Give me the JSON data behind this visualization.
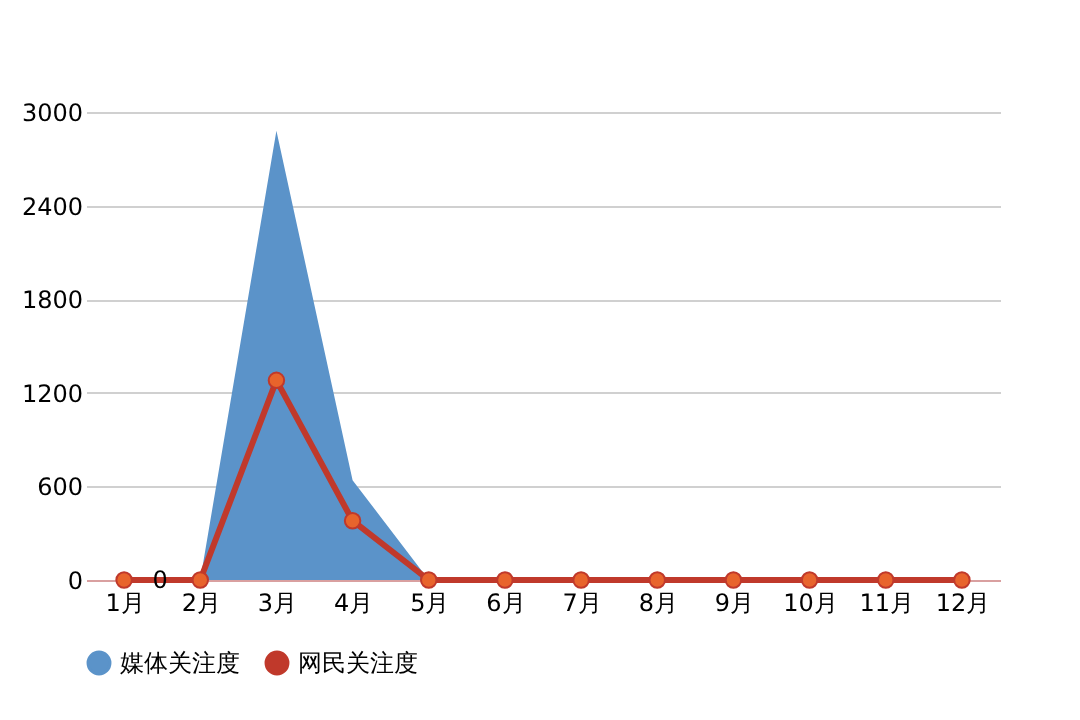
{
  "chart_data": {
    "type": "line",
    "categories": [
      "1月",
      "2月",
      "3月",
      "4月",
      "5月",
      "6月",
      "7月",
      "8月",
      "9月",
      "10月",
      "11月",
      "12月"
    ],
    "series": [
      {
        "name": "媒体关注度",
        "type": "area",
        "color": "#5b93c9",
        "values": [
          0,
          0,
          2880,
          640,
          0,
          0,
          0,
          0,
          0,
          0,
          0,
          0
        ]
      },
      {
        "name": "网民关注度",
        "color": "#c0392b",
        "marker": "circle",
        "values": [
          0,
          0,
          1280,
          380,
          0,
          0,
          0,
          0,
          0,
          0,
          0,
          0
        ]
      }
    ],
    "annotations": [
      {
        "text": "0",
        "x": "1月",
        "y": 0
      }
    ],
    "ylim": [
      0,
      3000
    ],
    "yticks": [
      0,
      600,
      1200,
      1800,
      2400,
      3000
    ],
    "grid": "y",
    "legend": "bottom",
    "line_style": "solid"
  }
}
